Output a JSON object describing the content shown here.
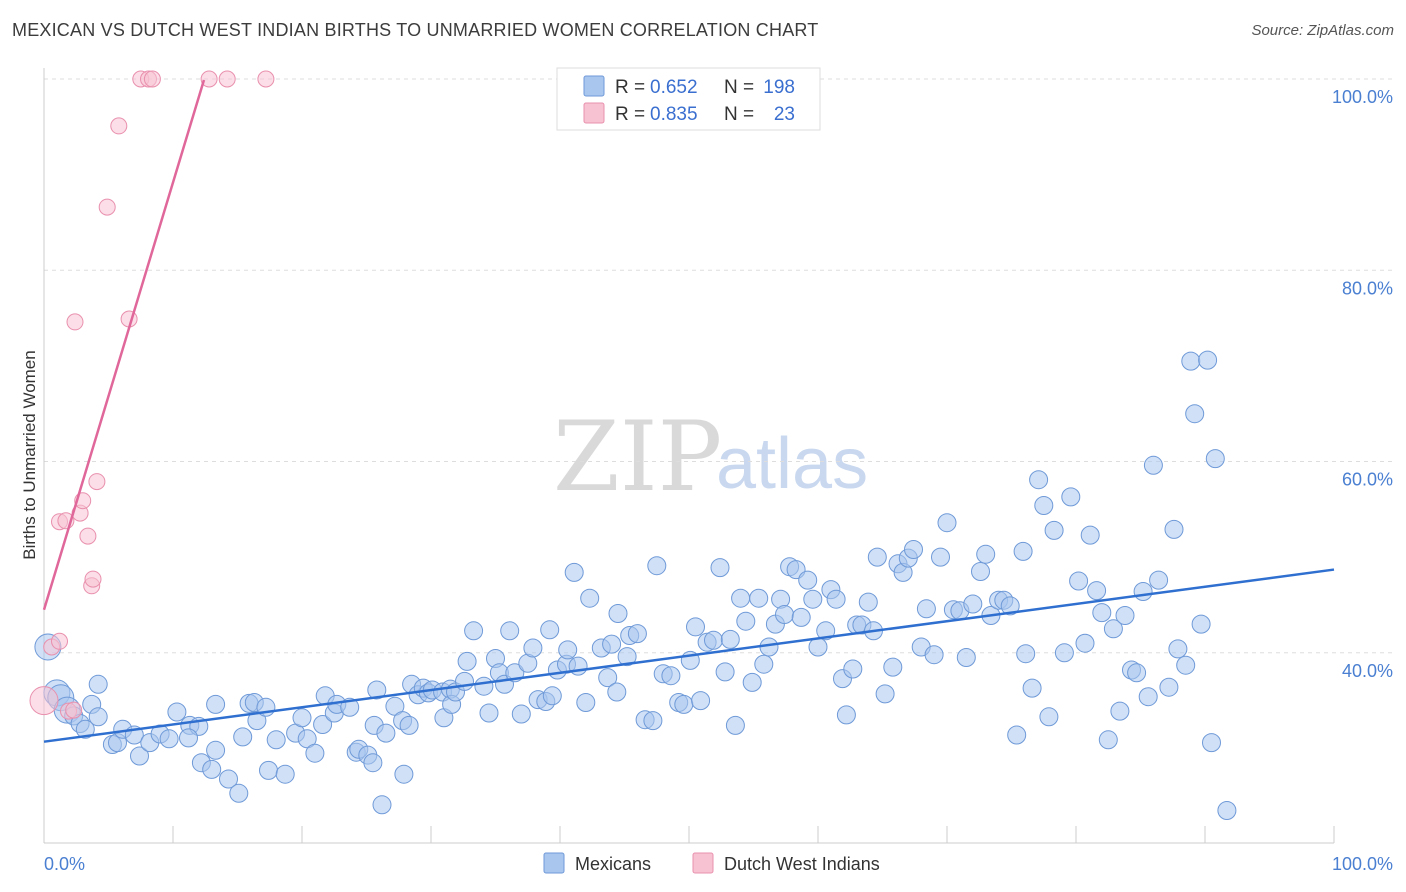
{
  "header": {
    "title": "MEXICAN VS DUTCH WEST INDIAN BIRTHS TO UNMARRIED WOMEN CORRELATION CHART",
    "source": "Source: ZipAtlas.com"
  },
  "watermark": {
    "zip": "ZIP",
    "atlas": "atlas"
  },
  "colors": {
    "mexicans_fill": "#a9c6ef",
    "mexicans_stroke": "#6f9ad8",
    "mexicans_line": "#2f6fcf",
    "dutch_fill": "#f7c3d3",
    "dutch_stroke": "#e990ad",
    "dutch_line": "#e0679a",
    "tick_text": "#4a7fd1",
    "grid": "#dddddd"
  },
  "legend": {
    "rows": [
      {
        "r_label": "R =",
        "r_value": "0.652",
        "n_label": "N =",
        "n_value": "198"
      },
      {
        "r_label": "R =",
        "r_value": "0.835",
        "n_label": "N =",
        "n_value": "23"
      }
    ]
  },
  "chart_data": {
    "type": "scatter",
    "title": "MEXICAN VS DUTCH WEST INDIAN BIRTHS TO UNMARRIED WOMEN CORRELATION CHART",
    "xlabel": "",
    "ylabel": "Births to Unmarried Women",
    "xlim": [
      0,
      100
    ],
    "ylim": [
      20,
      102
    ],
    "x_tick_labels": [
      "0.0%",
      "100.0%"
    ],
    "y_ticks": [
      40,
      60,
      80,
      100
    ],
    "y_tick_labels": [
      "40.0%",
      "60.0%",
      "80.0%",
      "100.0%"
    ],
    "grid": true,
    "legend_position": "bottom-center",
    "series": [
      {
        "name": "Mexicans",
        "r": 0.652,
        "n": 198,
        "trend": {
          "x": [
            0,
            100
          ],
          "y": [
            30.7,
            48.7
          ]
        },
        "points": [
          [
            0.3,
            40.6
          ],
          [
            1.0,
            35.8
          ],
          [
            1.3,
            35.3
          ],
          [
            1.8,
            34.0
          ],
          [
            2.3,
            33.4
          ],
          [
            2.8,
            32.6
          ],
          [
            3.2,
            32.0
          ],
          [
            3.7,
            34.6
          ],
          [
            4.2,
            33.3
          ],
          [
            5.3,
            30.4
          ],
          [
            5.7,
            30.6
          ],
          [
            6.1,
            32.0
          ],
          [
            7.0,
            31.4
          ],
          [
            7.4,
            29.2
          ],
          [
            8.2,
            30.6
          ],
          [
            9.0,
            31.5
          ],
          [
            9.7,
            31.0
          ],
          [
            10.3,
            33.8
          ],
          [
            11.3,
            32.4
          ],
          [
            12.0,
            32.3
          ],
          [
            11.2,
            31.1
          ],
          [
            12.2,
            28.5
          ],
          [
            13.3,
            29.8
          ],
          [
            13.0,
            27.8
          ],
          [
            13.3,
            34.6
          ],
          [
            14.3,
            26.8
          ],
          [
            15.1,
            25.3
          ],
          [
            15.4,
            31.2
          ],
          [
            15.9,
            34.7
          ],
          [
            16.3,
            34.8
          ],
          [
            16.5,
            32.9
          ],
          [
            17.2,
            34.3
          ],
          [
            17.4,
            27.7
          ],
          [
            18.0,
            30.9
          ],
          [
            18.7,
            27.3
          ],
          [
            19.5,
            31.6
          ],
          [
            20.0,
            33.2
          ],
          [
            20.4,
            31.0
          ],
          [
            21.0,
            29.5
          ],
          [
            21.6,
            32.5
          ],
          [
            21.8,
            35.5
          ],
          [
            22.5,
            33.7
          ],
          [
            22.7,
            34.6
          ],
          [
            23.7,
            34.3
          ],
          [
            24.2,
            29.6
          ],
          [
            24.4,
            29.9
          ],
          [
            25.1,
            29.3
          ],
          [
            25.5,
            28.5
          ],
          [
            25.6,
            32.4
          ],
          [
            25.8,
            36.1
          ],
          [
            26.2,
            24.1
          ],
          [
            26.5,
            31.6
          ],
          [
            27.2,
            34.4
          ],
          [
            27.8,
            32.9
          ],
          [
            27.9,
            27.3
          ],
          [
            28.3,
            32.4
          ],
          [
            28.5,
            36.7
          ],
          [
            29.0,
            35.6
          ],
          [
            29.4,
            36.3
          ],
          [
            29.8,
            35.8
          ],
          [
            30.1,
            36.1
          ],
          [
            30.9,
            35.9
          ],
          [
            31.0,
            33.2
          ],
          [
            31.5,
            36.2
          ],
          [
            31.6,
            34.6
          ],
          [
            31.9,
            35.9
          ],
          [
            32.6,
            37.0
          ],
          [
            32.8,
            39.1
          ],
          [
            33.3,
            42.3
          ],
          [
            34.1,
            36.5
          ],
          [
            34.5,
            33.7
          ],
          [
            35.0,
            39.4
          ],
          [
            35.3,
            37.9
          ],
          [
            35.7,
            36.7
          ],
          [
            36.1,
            42.3
          ],
          [
            36.5,
            37.9
          ],
          [
            37.0,
            33.6
          ],
          [
            37.5,
            38.9
          ],
          [
            37.9,
            40.5
          ],
          [
            38.3,
            35.1
          ],
          [
            38.9,
            34.9
          ],
          [
            39.2,
            42.4
          ],
          [
            39.4,
            35.5
          ],
          [
            39.8,
            38.2
          ],
          [
            40.5,
            38.8
          ],
          [
            40.6,
            40.3
          ],
          [
            41.1,
            48.4
          ],
          [
            41.4,
            38.6
          ],
          [
            42.0,
            34.8
          ],
          [
            42.3,
            45.7
          ],
          [
            43.2,
            40.5
          ],
          [
            43.7,
            37.4
          ],
          [
            44.0,
            40.9
          ],
          [
            44.4,
            35.9
          ],
          [
            44.5,
            44.1
          ],
          [
            45.2,
            39.6
          ],
          [
            45.4,
            41.8
          ],
          [
            46.0,
            42.0
          ],
          [
            46.6,
            33.0
          ],
          [
            47.2,
            32.9
          ],
          [
            47.5,
            49.1
          ],
          [
            48.0,
            37.8
          ],
          [
            48.6,
            37.6
          ],
          [
            49.2,
            34.8
          ],
          [
            49.6,
            34.6
          ],
          [
            50.1,
            39.2
          ],
          [
            50.5,
            42.7
          ],
          [
            50.9,
            35.0
          ],
          [
            51.4,
            41.1
          ],
          [
            51.9,
            41.3
          ],
          [
            52.4,
            48.9
          ],
          [
            52.8,
            38.0
          ],
          [
            53.2,
            41.4
          ],
          [
            53.6,
            32.4
          ],
          [
            54.0,
            45.7
          ],
          [
            54.4,
            43.3
          ],
          [
            54.9,
            36.9
          ],
          [
            55.4,
            45.7
          ],
          [
            55.8,
            38.8
          ],
          [
            56.2,
            40.6
          ],
          [
            56.7,
            43.0
          ],
          [
            57.1,
            45.6
          ],
          [
            57.4,
            44.0
          ],
          [
            57.8,
            49.0
          ],
          [
            58.3,
            48.7
          ],
          [
            58.7,
            43.7
          ],
          [
            59.2,
            47.6
          ],
          [
            59.6,
            45.6
          ],
          [
            60.0,
            40.6
          ],
          [
            60.6,
            42.3
          ],
          [
            61.0,
            46.6
          ],
          [
            61.4,
            45.6
          ],
          [
            61.9,
            37.3
          ],
          [
            62.2,
            33.5
          ],
          [
            62.7,
            38.3
          ],
          [
            63.0,
            42.9
          ],
          [
            63.4,
            42.9
          ],
          [
            63.9,
            45.3
          ],
          [
            64.3,
            42.3
          ],
          [
            64.6,
            50.0
          ],
          [
            65.2,
            35.7
          ],
          [
            65.8,
            38.5
          ],
          [
            66.2,
            49.3
          ],
          [
            66.6,
            48.4
          ],
          [
            67.0,
            49.9
          ],
          [
            67.4,
            50.8
          ],
          [
            68.0,
            40.6
          ],
          [
            68.4,
            44.6
          ],
          [
            69.0,
            39.8
          ],
          [
            69.5,
            50.0
          ],
          [
            70.0,
            53.6
          ],
          [
            70.5,
            44.5
          ],
          [
            71.0,
            44.4
          ],
          [
            71.5,
            39.5
          ],
          [
            72.0,
            45.1
          ],
          [
            72.6,
            48.5
          ],
          [
            73.0,
            50.3
          ],
          [
            73.4,
            43.9
          ],
          [
            74.0,
            45.5
          ],
          [
            74.4,
            45.5
          ],
          [
            74.9,
            44.9
          ],
          [
            75.4,
            31.4
          ],
          [
            75.9,
            50.6
          ],
          [
            76.1,
            39.9
          ],
          [
            76.6,
            36.3
          ],
          [
            77.1,
            58.1
          ],
          [
            77.5,
            55.4
          ],
          [
            77.9,
            33.3
          ],
          [
            78.3,
            52.8
          ],
          [
            79.1,
            40.0
          ],
          [
            79.6,
            56.3
          ],
          [
            80.2,
            47.5
          ],
          [
            80.7,
            41.0
          ],
          [
            81.1,
            52.3
          ],
          [
            81.6,
            46.5
          ],
          [
            82.0,
            44.2
          ],
          [
            82.5,
            30.9
          ],
          [
            82.9,
            42.5
          ],
          [
            83.4,
            33.9
          ],
          [
            83.8,
            43.9
          ],
          [
            84.3,
            38.2
          ],
          [
            84.7,
            37.9
          ],
          [
            85.2,
            46.4
          ],
          [
            85.6,
            35.4
          ],
          [
            86.0,
            59.6
          ],
          [
            86.4,
            47.6
          ],
          [
            87.2,
            36.4
          ],
          [
            87.6,
            52.9
          ],
          [
            87.9,
            40.4
          ],
          [
            88.5,
            38.7
          ],
          [
            88.9,
            70.5
          ],
          [
            89.2,
            65.0
          ],
          [
            89.7,
            43.0
          ],
          [
            90.2,
            70.6
          ],
          [
            90.5,
            30.6
          ],
          [
            90.8,
            60.3
          ],
          [
            91.7,
            23.5
          ],
          [
            4.2,
            36.7
          ]
        ]
      },
      {
        "name": "Dutch West Indians",
        "r": 0.835,
        "n": 23,
        "trend": {
          "x": [
            0,
            12.4
          ],
          "y": [
            44.5,
            99.9
          ]
        },
        "points": [
          [
            0.0,
            35.0
          ],
          [
            0.6,
            40.6
          ],
          [
            1.2,
            41.2
          ],
          [
            1.2,
            53.7
          ],
          [
            1.7,
            53.8
          ],
          [
            1.9,
            33.9
          ],
          [
            2.3,
            34.0
          ],
          [
            2.4,
            74.6
          ],
          [
            2.8,
            54.6
          ],
          [
            3.0,
            55.9
          ],
          [
            3.4,
            52.2
          ],
          [
            3.7,
            47.0
          ],
          [
            3.8,
            47.7
          ],
          [
            4.1,
            57.9
          ],
          [
            4.9,
            86.6
          ],
          [
            5.8,
            95.1
          ],
          [
            6.6,
            74.9
          ],
          [
            7.5,
            100.0
          ],
          [
            8.1,
            100.0
          ],
          [
            8.4,
            100.0
          ],
          [
            12.8,
            100.0
          ],
          [
            14.2,
            100.0
          ],
          [
            17.2,
            100.0
          ]
        ]
      }
    ]
  },
  "bottom_legend": {
    "items": [
      {
        "label": "Mexicans"
      },
      {
        "label": "Dutch West Indians"
      }
    ]
  }
}
